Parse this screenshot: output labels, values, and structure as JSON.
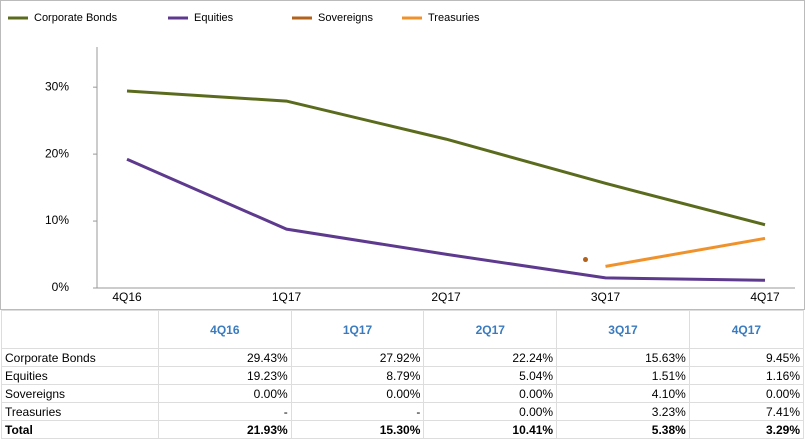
{
  "chart_data": {
    "type": "line",
    "categories": [
      "4Q16",
      "1Q17",
      "2Q17",
      "3Q17",
      "4Q17"
    ],
    "series": [
      {
        "name": "Corporate Bonds",
        "color": "#5a6b1e",
        "values": [
          29.43,
          27.92,
          22.24,
          15.63,
          9.45
        ]
      },
      {
        "name": "Equities",
        "color": "#5e3a8e",
        "values": [
          19.23,
          8.79,
          5.04,
          1.51,
          1.16
        ]
      },
      {
        "name": "Sovereigns",
        "color": "#b3621c",
        "values": [
          null,
          null,
          null,
          4.1,
          null
        ]
      },
      {
        "name": "Treasuries",
        "color": "#f0922b",
        "values": [
          null,
          null,
          null,
          3.23,
          7.41
        ]
      }
    ],
    "ylim": [
      0,
      36
    ],
    "yticks": [
      {
        "value": 0,
        "label": "0%"
      },
      {
        "value": 10,
        "label": "10%"
      },
      {
        "value": 20,
        "label": "20%"
      },
      {
        "value": 30,
        "label": "30%"
      }
    ],
    "grid": false
  },
  "table": {
    "header": [
      "4Q16",
      "1Q17",
      "2Q17",
      "3Q17",
      "4Q17"
    ],
    "rows": [
      {
        "label": "Corporate Bonds",
        "values": [
          "29.43%",
          "27.92%",
          "22.24%",
          "15.63%",
          "9.45%"
        ]
      },
      {
        "label": "Equities",
        "values": [
          "19.23%",
          "8.79%",
          "5.04%",
          "1.51%",
          "1.16%"
        ]
      },
      {
        "label": "Sovereigns",
        "values": [
          "0.00%",
          "0.00%",
          "0.00%",
          "4.10%",
          "0.00%"
        ]
      },
      {
        "label": "Treasuries",
        "values": [
          "-",
          "-",
          "0.00%",
          "3.23%",
          "7.41%"
        ]
      }
    ],
    "total": {
      "label": "Total",
      "values": [
        "21.93%",
        "15.30%",
        "10.41%",
        "5.38%",
        "3.29%"
      ]
    }
  }
}
